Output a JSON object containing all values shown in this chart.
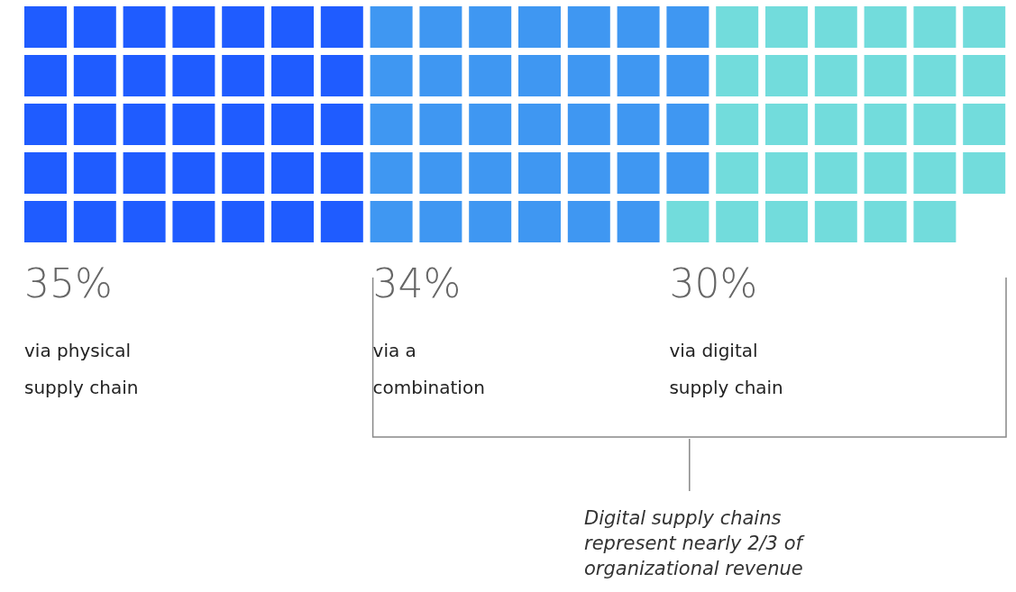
{
  "chart_data": {
    "type": "other",
    "categories": [
      "via physical supply chain",
      "via a combination",
      "via digital supply chain"
    ],
    "values": [
      35,
      34,
      30
    ],
    "value_labels": [
      "35%",
      "34%",
      "30%"
    ],
    "colors": [
      "#1f5cff",
      "#3f97f2",
      "#72dcdc"
    ],
    "annotations": [
      "Digital supply chains represent nearly 2/3 of organizational revenue"
    ]
  }
}
